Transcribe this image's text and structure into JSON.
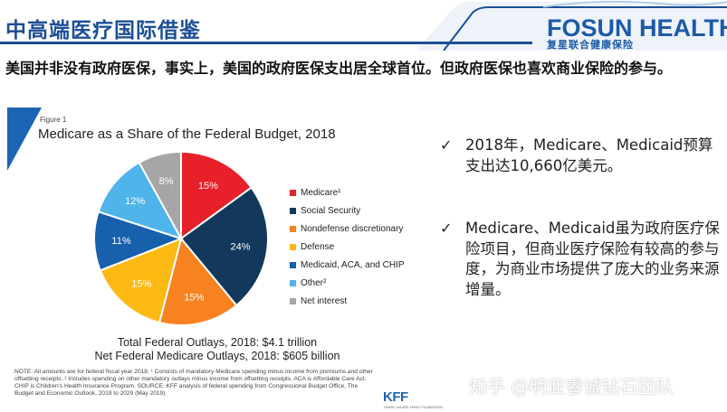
{
  "header": {
    "title": "中高端医疗国际借鉴",
    "logo_main": "FOSUN HEALTH",
    "logo_sub": "复星联合健康保险"
  },
  "intro_text": "美国并非没有政府医保，事实上，美国的政府医保支出居全球首位。但政府医保也喜欢商业保险的参与。",
  "figure": {
    "label": "Figure 1",
    "title": "Medicare as a Share of the Federal Budget, 2018",
    "total_line": "Total Federal Outlays, 2018: $4.1 trillion",
    "net_line": "Net Federal Medicare Outlays, 2018: $605 billion",
    "notes": "NOTE: All amounts are for federal fiscal year 2018. ¹ Consists of mandatory Medicare spending minus income from premiums and other offsetting receipts. ² Includes spending on other mandatory outlays minus income from offsetting receipts. ACA is Affordable Care Act. CHIP is Children's Health Insurance Program. SOURCE: KFF analysis of federal spending from Congressional Budget Office, The Budget and Economic Outlook, 2019 to 2029 (May 2019).",
    "source_logo": "KFF",
    "source_logo_sub": "HENRY J KAISER FAMILY FOUNDATION"
  },
  "chart_data": {
    "type": "pie",
    "title": "Medicare as a Share of the Federal Budget, 2018",
    "legend_position": "right",
    "slices": [
      {
        "name": "Medicare¹",
        "value": 15,
        "label": "15%",
        "color": "#e8202a"
      },
      {
        "name": "Social Security",
        "value": 24,
        "label": "24%",
        "color": "#12395c"
      },
      {
        "name": "Nondefense discretionary",
        "value": 15,
        "label": "15%",
        "color": "#f7821f"
      },
      {
        "name": "Defense",
        "value": 15,
        "label": "15%",
        "color": "#fdb913"
      },
      {
        "name": "Medicaid, ACA, and CHIP",
        "value": 11,
        "label": "11%",
        "color": "#1660ac"
      },
      {
        "name": "Other²",
        "value": 12,
        "label": "12%",
        "color": "#4fb4ea"
      },
      {
        "name": "Net interest",
        "value": 8,
        "label": "8%",
        "color": "#a6a6a6"
      }
    ]
  },
  "bullets": [
    {
      "check": "✓",
      "text": "2018年，Medicare、Medicaid预算支出达10,660亿美元。"
    },
    {
      "check": "✓",
      "text": "Medicare、Medicaid虽为政府医疗保险项目，但商业医疗保险有较高的参与度，为商业市场提供了庞大的业务来源增量。"
    }
  ],
  "watermark": "知乎 @明亚睿诚钻石团队",
  "colors": {
    "brand_blue": "#1c4f94",
    "accent_blue": "#1c64b4"
  }
}
